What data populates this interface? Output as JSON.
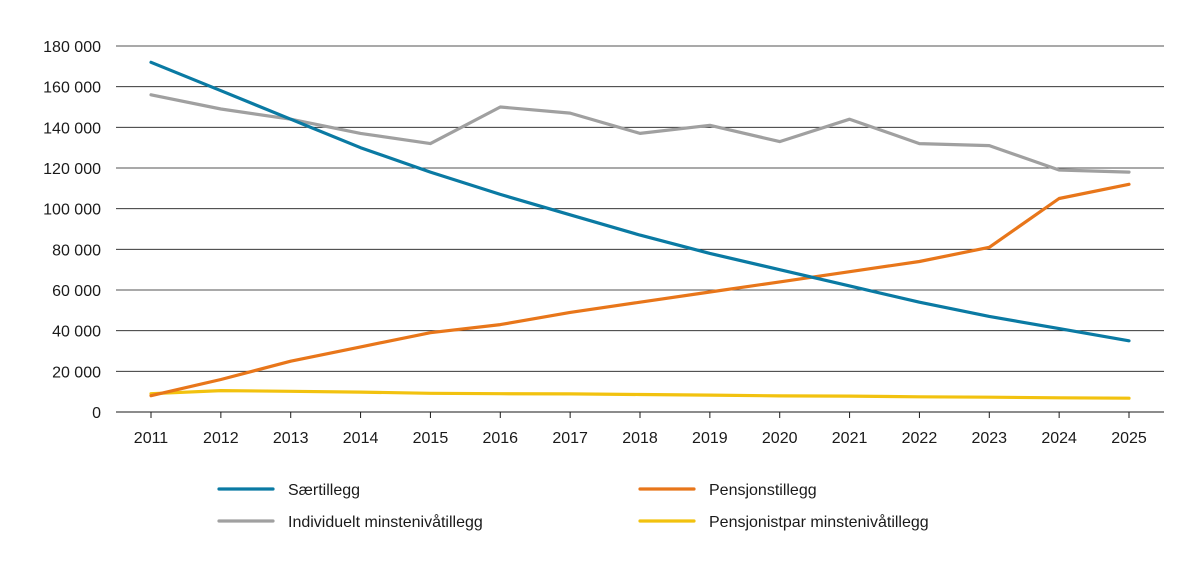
{
  "chart_data": {
    "type": "line",
    "title": "",
    "xlabel": "",
    "ylabel": "",
    "x": [
      2011,
      2012,
      2013,
      2014,
      2015,
      2016,
      2017,
      2018,
      2019,
      2020,
      2021,
      2022,
      2023,
      2024,
      2025
    ],
    "x_tick_labels": [
      "2011",
      "2012",
      "2013",
      "2014",
      "2015",
      "2016",
      "2017",
      "2018",
      "2019",
      "2020",
      "2021",
      "2022",
      "2023",
      "2024",
      "2025"
    ],
    "ylim": [
      0,
      180000
    ],
    "y_ticks": [
      0,
      20000,
      40000,
      60000,
      80000,
      100000,
      120000,
      140000,
      160000,
      180000
    ],
    "y_tick_labels": [
      "0",
      "20 000",
      "40 000",
      "60 000",
      "80 000",
      "100 000",
      "120 000",
      "140 000",
      "160 000",
      "180 000"
    ],
    "grid": "horizontal",
    "legend_position": "bottom",
    "series": [
      {
        "name": "Særtillegg",
        "color": "#0a7aa3",
        "values": [
          172000,
          158000,
          144000,
          130000,
          118000,
          107000,
          97000,
          87000,
          78000,
          70000,
          62000,
          54000,
          47000,
          41000,
          35000
        ]
      },
      {
        "name": "Pensjonstillegg",
        "color": "#e8761a",
        "values": [
          8000,
          16000,
          25000,
          32000,
          39000,
          43000,
          49000,
          54000,
          59000,
          64000,
          69000,
          74000,
          81000,
          105000,
          112000
        ]
      },
      {
        "name": "Individuelt minstenivåtillegg",
        "color": "#a0a0a0",
        "values": [
          156000,
          149000,
          144000,
          137000,
          132000,
          150000,
          147000,
          137000,
          141000,
          133000,
          144000,
          132000,
          131000,
          119000,
          118000
        ]
      },
      {
        "name": "Pensjonistpar minstenivåtillegg",
        "color": "#f2c20f",
        "values": [
          9000,
          10500,
          10200,
          9800,
          9200,
          9000,
          8900,
          8600,
          8300,
          7900,
          7800,
          7500,
          7300,
          7000,
          6800
        ]
      }
    ]
  }
}
